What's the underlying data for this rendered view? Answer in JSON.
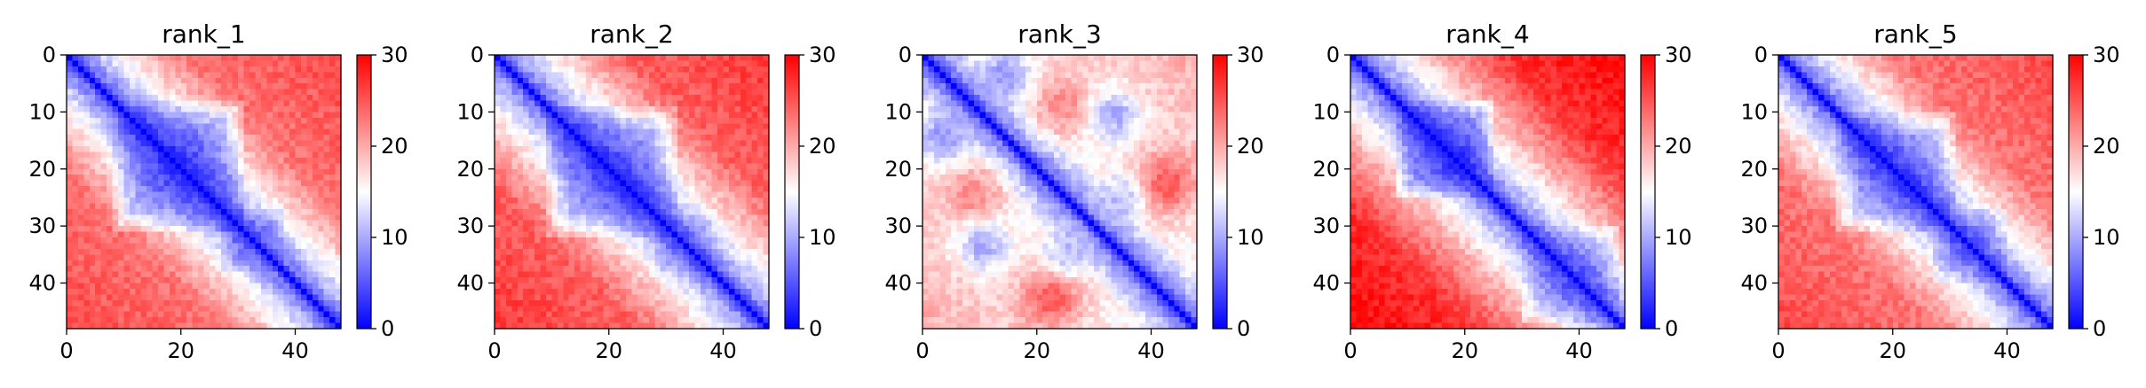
{
  "figure": {
    "background": "#ffffff"
  },
  "colormap": {
    "name": "bwr",
    "low": "#0000ff",
    "mid": "#ffffff",
    "high": "#ff0000",
    "vmin": 0,
    "vmax": 30
  },
  "chart_data": [
    {
      "type": "heatmap",
      "title": "rank_1",
      "matrix_size": 48,
      "x_ticks": [
        0,
        20,
        40
      ],
      "y_ticks": [
        0,
        10,
        20,
        30,
        40
      ],
      "colorbar_ticks": [
        0,
        10,
        20,
        30
      ],
      "clim": [
        0,
        30
      ],
      "pattern": {
        "description_values": "pairwise distance matrix; diagonal ~0, one large compact block",
        "blocks": [
          {
            "center": 19,
            "radius": 12,
            "depth": 0.55
          },
          {
            "center": 32,
            "radius": 6,
            "depth": 0.25
          }
        ],
        "background_level": 22,
        "far_corner_level": 26
      }
    },
    {
      "type": "heatmap",
      "title": "rank_2",
      "matrix_size": 48,
      "x_ticks": [
        0,
        20,
        40
      ],
      "y_ticks": [
        0,
        10,
        20,
        30,
        40
      ],
      "colorbar_ticks": [
        0,
        10,
        20,
        30
      ],
      "clim": [
        0,
        30
      ],
      "pattern": {
        "blocks": [
          {
            "center": 20,
            "radius": 12,
            "depth": 0.5
          },
          {
            "center": 33,
            "radius": 6,
            "depth": 0.2
          }
        ],
        "background_level": 23,
        "far_corner_level": 27
      }
    },
    {
      "type": "heatmap",
      "title": "rank_3",
      "matrix_size": 48,
      "x_ticks": [
        0,
        20,
        40
      ],
      "y_ticks": [
        0,
        10,
        20,
        30,
        40
      ],
      "colorbar_ticks": [
        0,
        10,
        20,
        30
      ],
      "clim": [
        0,
        30
      ],
      "pattern": {
        "blocks": [],
        "hotspots": [
          {
            "i": 8,
            "j": 24,
            "value": 22
          },
          {
            "i": 24,
            "j": 8,
            "value": 22
          },
          {
            "i": 22,
            "j": 42,
            "value": 25
          },
          {
            "i": 42,
            "j": 22,
            "value": 25
          }
        ],
        "coldspots": [
          {
            "i": 3,
            "j": 14,
            "value": 9
          },
          {
            "i": 14,
            "j": 3,
            "value": 9
          },
          {
            "i": 33,
            "j": 10,
            "value": 10
          },
          {
            "i": 10,
            "j": 33,
            "value": 10
          },
          {
            "i": 34,
            "j": 25,
            "value": 11
          },
          {
            "i": 25,
            "j": 34,
            "value": 11
          }
        ],
        "background_level": 15,
        "far_corner_level": 20
      }
    },
    {
      "type": "heatmap",
      "title": "rank_4",
      "matrix_size": 48,
      "x_ticks": [
        0,
        20,
        40
      ],
      "y_ticks": [
        0,
        10,
        20,
        30,
        40
      ],
      "colorbar_ticks": [
        0,
        10,
        20,
        30
      ],
      "clim": [
        0,
        30
      ],
      "pattern": {
        "blocks": [
          {
            "center": 16,
            "radius": 9,
            "depth": 0.55
          },
          {
            "center": 38,
            "radius": 9,
            "depth": 0.35
          }
        ],
        "background_level": 25,
        "far_corner_level": 30
      }
    },
    {
      "type": "heatmap",
      "title": "rank_5",
      "matrix_size": 48,
      "x_ticks": [
        0,
        20,
        40
      ],
      "y_ticks": [
        0,
        10,
        20,
        30,
        40
      ],
      "colorbar_ticks": [
        0,
        10,
        20,
        30
      ],
      "clim": [
        0,
        30
      ],
      "pattern": {
        "blocks": [
          {
            "center": 20,
            "radius": 11,
            "depth": 0.45
          },
          {
            "center": 33,
            "radius": 7,
            "depth": 0.25
          }
        ],
        "background_level": 22,
        "far_corner_level": 26
      }
    }
  ]
}
